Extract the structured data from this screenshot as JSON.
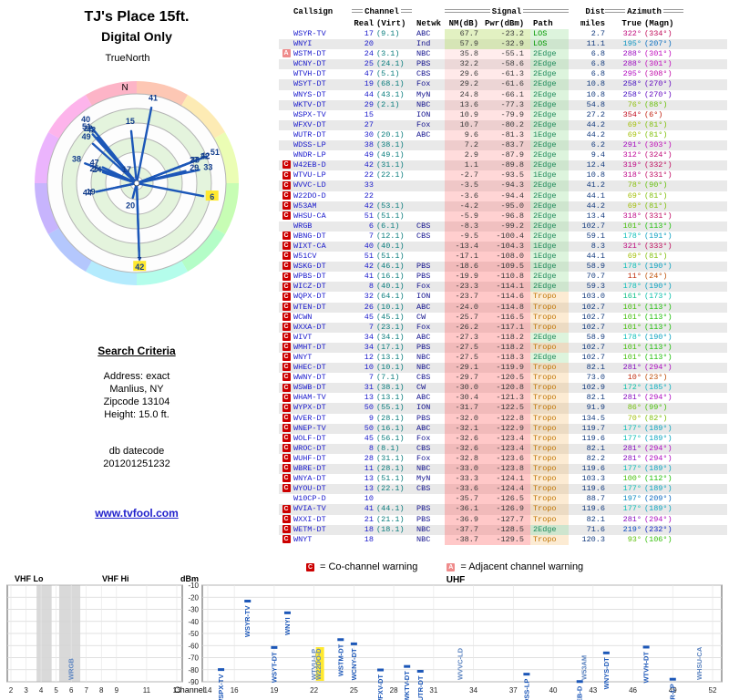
{
  "header": {
    "title": "TJ's Place 15ft.",
    "subtitle": "Digital Only",
    "true_north": "TrueNorth",
    "north": "N"
  },
  "search": {
    "title": "Search Criteria",
    "lines": [
      "Address: exact",
      "Manlius, NY",
      "Zipcode 13104",
      "Height: 15.0 ft."
    ],
    "datecode_label": "db datecode",
    "datecode": "201201251232"
  },
  "footer": {
    "link": "www.tvfool.com"
  },
  "legend": {
    "c_symbol": "C",
    "c_label": "= Co-channel warning",
    "a_symbol": "A",
    "a_label": "= Adjacent channel warning"
  },
  "colors": {
    "accent_blue": "#1c57b8",
    "callsign_blue": "#1a1acc",
    "warning_red": "#cc0000",
    "warning_pink": "#ef8b8b",
    "highlight_yellow": "#ffe92e"
  },
  "table": {
    "headers": {
      "callsign": "Callsign",
      "channel_group": "Channel",
      "signal_group": "Signal",
      "dist": "Dist",
      "azimuth_group": "Azimuth",
      "real": "Real",
      "virt": "(Virt)",
      "netwk": "Netwk",
      "nm": "NM(dB)",
      "pwr": "Pwr(dBm)",
      "path": "Path",
      "miles": "miles",
      "true": "True",
      "magn": "(Magn)"
    },
    "rows": [
      [
        "",
        "WSYR-TV",
        "17",
        "(9.1)",
        "ABC",
        "67.7",
        "-23.2",
        "LOS",
        "2.7",
        "322°",
        "(334°)"
      ],
      [
        "",
        "WNYI",
        "20",
        "",
        "Ind",
        "57.9",
        "-32.9",
        "LOS",
        "11.1",
        "195°",
        "(207°)"
      ],
      [
        "A",
        "WSTM-DT",
        "24",
        "(3.1)",
        "NBC",
        "35.8",
        "-55.1",
        "2Edge",
        "6.8",
        "288°",
        "(301°)"
      ],
      [
        "",
        "WCNY-DT",
        "25",
        "(24.1)",
        "PBS",
        "32.2",
        "-58.6",
        "2Edge",
        "6.8",
        "288°",
        "(301°)"
      ],
      [
        "",
        "WTVH-DT",
        "47",
        "(5.1)",
        "CBS",
        "29.6",
        "-61.3",
        "2Edge",
        "6.8",
        "295°",
        "(308°)"
      ],
      [
        "",
        "WSYT-DT",
        "19",
        "(68.1)",
        "Fox",
        "29.2",
        "-61.6",
        "2Edge",
        "10.8",
        "258°",
        "(270°)"
      ],
      [
        "",
        "WNYS-DT",
        "44",
        "(43.1)",
        "MyN",
        "24.8",
        "-66.1",
        "2Edge",
        "10.8",
        "258°",
        "(270°)"
      ],
      [
        "",
        "WKTV-DT",
        "29",
        "(2.1)",
        "NBC",
        "13.6",
        "-77.3",
        "2Edge",
        "54.8",
        "76°",
        "(88°)"
      ],
      [
        "",
        "WSPX-TV",
        "15",
        "",
        "ION",
        "10.9",
        "-79.9",
        "2Edge",
        "27.2",
        "354°",
        "(6°)"
      ],
      [
        "",
        "WFXV-DT",
        "27",
        "",
        "Fox",
        "10.7",
        "-80.2",
        "2Edge",
        "44.2",
        "69°",
        "(81°)"
      ],
      [
        "",
        "WUTR-DT",
        "30",
        "(20.1)",
        "ABC",
        "9.6",
        "-81.3",
        "1Edge",
        "44.2",
        "69°",
        "(81°)"
      ],
      [
        "",
        "WDSS-LP",
        "38",
        "(38.1)",
        "",
        "7.2",
        "-83.7",
        "2Edge",
        "6.2",
        "291°",
        "(303°)"
      ],
      [
        "",
        "WNDR-LP",
        "49",
        "(49.1)",
        "",
        "2.9",
        "-87.9",
        "2Edge",
        "9.4",
        "312°",
        "(324°)"
      ],
      [
        "C",
        "W42EB-D",
        "42",
        "(31.1)",
        "",
        "1.1",
        "-89.8",
        "2Edge",
        "12.4",
        "319°",
        "(332°)"
      ],
      [
        "C",
        "WTVU-LP",
        "22",
        "(22.1)",
        "",
        "-2.7",
        "-93.5",
        "1Edge",
        "10.8",
        "318°",
        "(331°)"
      ],
      [
        "C",
        "WVVC-LD",
        "33",
        "",
        "",
        "-3.5",
        "-94.3",
        "2Edge",
        "41.2",
        "78°",
        "(90°)"
      ],
      [
        "C",
        "W22DO-D",
        "22",
        "",
        "",
        "-3.6",
        "-94.4",
        "2Edge",
        "44.1",
        "69°",
        "(81°)"
      ],
      [
        "C",
        "W53AM",
        "42",
        "(53.1)",
        "",
        "-4.2",
        "-95.0",
        "2Edge",
        "44.2",
        "69°",
        "(81°)"
      ],
      [
        "C",
        "WHSU-CA",
        "51",
        "(51.1)",
        "",
        "-5.9",
        "-96.8",
        "2Edge",
        "13.4",
        "318°",
        "(331°)"
      ],
      [
        "",
        "WRGB",
        "6",
        "(6.1)",
        "CBS",
        "-8.3",
        "-99.2",
        "2Edge",
        "102.7",
        "101°",
        "(113°)"
      ],
      [
        "C",
        "WBNG-DT",
        "7",
        "(12.1)",
        "CBS",
        "-9.5",
        "-100.4",
        "2Edge",
        "59.1",
        "178°",
        "(191°)"
      ],
      [
        "C",
        "WIXT-CA",
        "40",
        "(40.1)",
        "",
        "-13.4",
        "-104.3",
        "1Edge",
        "8.3",
        "321°",
        "(333°)"
      ],
      [
        "C",
        "W51CV",
        "51",
        "(51.1)",
        "",
        "-17.1",
        "-108.0",
        "1Edge",
        "44.1",
        "69°",
        "(81°)"
      ],
      [
        "C",
        "WSKG-DT",
        "42",
        "(46.1)",
        "PBS",
        "-18.6",
        "-109.5",
        "1Edge",
        "58.9",
        "178°",
        "(190°)"
      ],
      [
        "C",
        "WPBS-DT",
        "41",
        "(16.1)",
        "PBS",
        "-19.9",
        "-110.8",
        "2Edge",
        "70.7",
        "11°",
        "(24°)"
      ],
      [
        "C",
        "WICZ-DT",
        "8",
        "(40.1)",
        "Fox",
        "-23.3",
        "-114.1",
        "2Edge",
        "59.3",
        "178°",
        "(190°)"
      ],
      [
        "C",
        "WQPX-DT",
        "32",
        "(64.1)",
        "ION",
        "-23.7",
        "-114.6",
        "Tropo",
        "103.0",
        "161°",
        "(173°)"
      ],
      [
        "C",
        "WTEN-DT",
        "26",
        "(10.1)",
        "ABC",
        "-24.0",
        "-114.8",
        "Tropo",
        "102.7",
        "101°",
        "(113°)"
      ],
      [
        "C",
        "WCWN",
        "45",
        "(45.1)",
        "CW",
        "-25.7",
        "-116.5",
        "Tropo",
        "102.7",
        "101°",
        "(113°)"
      ],
      [
        "C",
        "WXXA-DT",
        "7",
        "(23.1)",
        "Fox",
        "-26.2",
        "-117.1",
        "Tropo",
        "102.7",
        "101°",
        "(113°)"
      ],
      [
        "C",
        "WIVT",
        "34",
        "(34.1)",
        "ABC",
        "-27.3",
        "-118.2",
        "2Edge",
        "58.9",
        "178°",
        "(190°)"
      ],
      [
        "C",
        "WMHT-DT",
        "34",
        "(17.1)",
        "PBS",
        "-27.5",
        "-118.2",
        "Tropo",
        "102.7",
        "101°",
        "(113°)"
      ],
      [
        "C",
        "WNYT",
        "12",
        "(13.1)",
        "NBC",
        "-27.5",
        "-118.3",
        "2Edge",
        "102.7",
        "101°",
        "(113°)"
      ],
      [
        "C",
        "WHEC-DT",
        "10",
        "(10.1)",
        "NBC",
        "-29.1",
        "-119.9",
        "Tropo",
        "82.1",
        "281°",
        "(294°)"
      ],
      [
        "C",
        "WWNY-DT",
        "7",
        "(7.1)",
        "CBS",
        "-29.7",
        "-120.5",
        "Tropo",
        "73.0",
        "10°",
        "(23°)"
      ],
      [
        "C",
        "WSWB-DT",
        "31",
        "(38.1)",
        "CW",
        "-30.0",
        "-120.8",
        "Tropo",
        "102.9",
        "172°",
        "(185°)"
      ],
      [
        "C",
        "WHAM-TV",
        "13",
        "(13.1)",
        "ABC",
        "-30.4",
        "-121.3",
        "Tropo",
        "82.1",
        "281°",
        "(294°)"
      ],
      [
        "C",
        "WYPX-DT",
        "50",
        "(55.1)",
        "ION",
        "-31.7",
        "-122.5",
        "Tropo",
        "91.9",
        "86°",
        "(99°)"
      ],
      [
        "C",
        "WVER-DT",
        "9",
        "(28.1)",
        "PBS",
        "-32.0",
        "-122.8",
        "Tropo",
        "134.5",
        "70°",
        "(82°)"
      ],
      [
        "C",
        "WNEP-TV",
        "50",
        "(16.1)",
        "ABC",
        "-32.1",
        "-122.9",
        "Tropo",
        "119.7",
        "177°",
        "(189°)"
      ],
      [
        "C",
        "WOLF-DT",
        "45",
        "(56.1)",
        "Fox",
        "-32.6",
        "-123.4",
        "Tropo",
        "119.6",
        "177°",
        "(189°)"
      ],
      [
        "C",
        "WROC-DT",
        "8",
        "(8.1)",
        "CBS",
        "-32.6",
        "-123.4",
        "Tropo",
        "82.1",
        "281°",
        "(294°)"
      ],
      [
        "C",
        "WUHF-DT",
        "28",
        "(31.1)",
        "Fox",
        "-32.8",
        "-123.6",
        "Tropo",
        "82.2",
        "281°",
        "(294°)"
      ],
      [
        "C",
        "WBRE-DT",
        "11",
        "(28.1)",
        "NBC",
        "-33.0",
        "-123.8",
        "Tropo",
        "119.6",
        "177°",
        "(189°)"
      ],
      [
        "C",
        "WNYA-DT",
        "13",
        "(51.1)",
        "MyN",
        "-33.3",
        "-124.1",
        "Tropo",
        "103.3",
        "100°",
        "(112°)"
      ],
      [
        "C",
        "WYOU-DT",
        "13",
        "(22.1)",
        "CBS",
        "-33.6",
        "-124.4",
        "Tropo",
        "119.6",
        "177°",
        "(189°)"
      ],
      [
        "",
        "W10CP-D",
        "10",
        "",
        "",
        "-35.7",
        "-126.5",
        "Tropo",
        "88.7",
        "197°",
        "(209°)"
      ],
      [
        "C",
        "WVIA-TV",
        "41",
        "(44.1)",
        "PBS",
        "-36.1",
        "-126.9",
        "Tropo",
        "119.6",
        "177°",
        "(189°)"
      ],
      [
        "C",
        "WXXI-DT",
        "21",
        "(21.1)",
        "PBS",
        "-36.9",
        "-127.7",
        "Tropo",
        "82.1",
        "281°",
        "(294°)"
      ],
      [
        "C",
        "WETM-DT",
        "18",
        "(18.1)",
        "NBC",
        "-37.7",
        "-128.5",
        "2Edge",
        "71.6",
        "219°",
        "(232°)"
      ],
      [
        "C",
        "WNYT",
        "18",
        "",
        "NBC",
        "-38.7",
        "-129.5",
        "Tropo",
        "120.3",
        "93°",
        "(106°)"
      ]
    ]
  },
  "chart_data": [
    {
      "type": "scatter",
      "title": "Signal power vs channel",
      "ylabel": "dBm",
      "xlabel": "Channel",
      "ylim": [
        -90,
        -10
      ],
      "y_ticks": [
        -10,
        -20,
        -30,
        -40,
        -50,
        -60,
        -70,
        -80,
        -90
      ],
      "panel_labels": {
        "vhf_lo": "VHF Lo",
        "vhf_hi": "VHF Hi",
        "uhf": "UHF"
      },
      "vhf_ticks": [
        2,
        3,
        4,
        5,
        6,
        7,
        8,
        9,
        11,
        13
      ],
      "uhf_ticks": [
        14,
        16,
        19,
        22,
        25,
        28,
        31,
        34,
        37,
        40,
        43,
        46,
        49,
        52
      ],
      "vhf_shaded_bands": [
        [
          3.7,
          4.7
        ],
        [
          5.2,
          6.6
        ]
      ],
      "highlight_callsign": "W22DO-D",
      "stations": [
        {
          "callsign": "WSYR-TV",
          "ch": 17,
          "dbm": -23.2,
          "band": "uhf"
        },
        {
          "callsign": "WNYI",
          "ch": 20,
          "dbm": -32.9,
          "band": "uhf"
        },
        {
          "callsign": "WSTM-DT",
          "ch": 24,
          "dbm": -55.1,
          "band": "uhf"
        },
        {
          "callsign": "WCNY-DT",
          "ch": 25,
          "dbm": -58.6,
          "band": "uhf"
        },
        {
          "callsign": "WTVH-DT",
          "ch": 47,
          "dbm": -61.3,
          "band": "uhf"
        },
        {
          "callsign": "WSYT-DT",
          "ch": 19,
          "dbm": -61.6,
          "band": "uhf"
        },
        {
          "callsign": "WNYS-DT",
          "ch": 44,
          "dbm": -66.1,
          "band": "uhf"
        },
        {
          "callsign": "WKTV-DT",
          "ch": 29,
          "dbm": -77.3,
          "band": "uhf"
        },
        {
          "callsign": "WSPX-TV",
          "ch": 15,
          "dbm": -79.9,
          "band": "uhf"
        },
        {
          "callsign": "WFXV-DT",
          "ch": 27,
          "dbm": -80.2,
          "band": "uhf"
        },
        {
          "callsign": "WUTR-DT",
          "ch": 30,
          "dbm": -81.3,
          "band": "uhf"
        },
        {
          "callsign": "WDSS-LP",
          "ch": 38,
          "dbm": -83.7,
          "band": "uhf"
        },
        {
          "callsign": "WNDR-LP",
          "ch": 49,
          "dbm": -87.9,
          "band": "uhf"
        },
        {
          "callsign": "W42EB-D",
          "ch": 42,
          "dbm": -89.8,
          "band": "uhf"
        },
        {
          "callsign": "WTVU-LP",
          "ch": 22,
          "dbm": -93.5,
          "band": "uhf"
        },
        {
          "callsign": "WVVC-LD",
          "ch": 33,
          "dbm": -94.3,
          "band": "uhf"
        },
        {
          "callsign": "W22DO-D",
          "ch": 22,
          "dbm": -94.4,
          "band": "uhf"
        },
        {
          "callsign": "W53AM",
          "ch": 42,
          "dbm": -95.0,
          "band": "uhf"
        },
        {
          "callsign": "WHSU-CA",
          "ch": 51,
          "dbm": -96.8,
          "band": "uhf"
        },
        {
          "callsign": "WRGB",
          "ch": 6,
          "dbm": -99.2,
          "band": "vhf"
        }
      ]
    },
    {
      "type": "radar-azimuth",
      "spokes": [
        {
          "ch": 17,
          "az": 322,
          "nm": 67.7
        },
        {
          "ch": 20,
          "az": 195,
          "nm": 57.9
        },
        {
          "ch": 24,
          "az": 288,
          "nm": 35.8
        },
        {
          "ch": 25,
          "az": 288,
          "nm": 32.2
        },
        {
          "ch": 47,
          "az": 295,
          "nm": 29.6
        },
        {
          "ch": 19,
          "az": 258,
          "nm": 29.2
        },
        {
          "ch": 44,
          "az": 258,
          "nm": 24.8
        },
        {
          "ch": 29,
          "az": 76,
          "nm": 13.6
        },
        {
          "ch": 15,
          "az": 354,
          "nm": 10.9
        },
        {
          "ch": 27,
          "az": 69,
          "nm": 10.7
        },
        {
          "ch": 30,
          "az": 69,
          "nm": 9.6
        },
        {
          "ch": 38,
          "az": 291,
          "nm": 7.2
        },
        {
          "ch": 49,
          "az": 312,
          "nm": 2.9
        },
        {
          "ch": 42,
          "az": 319,
          "nm": 1.1
        },
        {
          "ch": 22,
          "az": 318,
          "nm": -2.7
        },
        {
          "ch": 33,
          "az": 78,
          "nm": -3.5
        },
        {
          "ch": 22,
          "az": 69,
          "nm": -3.6
        },
        {
          "ch": 42,
          "az": 69,
          "nm": -4.2
        },
        {
          "ch": 51,
          "az": 318,
          "nm": -5.9
        },
        {
          "ch": 6,
          "az": 101,
          "nm": -8.3
        },
        {
          "ch": 7,
          "az": 178,
          "nm": -9.5
        },
        {
          "ch": 40,
          "az": 321,
          "nm": -13.4
        },
        {
          "ch": 51,
          "az": 69,
          "nm": -17.1
        },
        {
          "ch": 42,
          "az": 178,
          "nm": -18.6
        },
        {
          "ch": 41,
          "az": 11,
          "nm": -19.9
        }
      ],
      "highlights": [
        {
          "ch": 6,
          "az": 101
        },
        {
          "ch": 42,
          "az": 178
        }
      ]
    }
  ]
}
